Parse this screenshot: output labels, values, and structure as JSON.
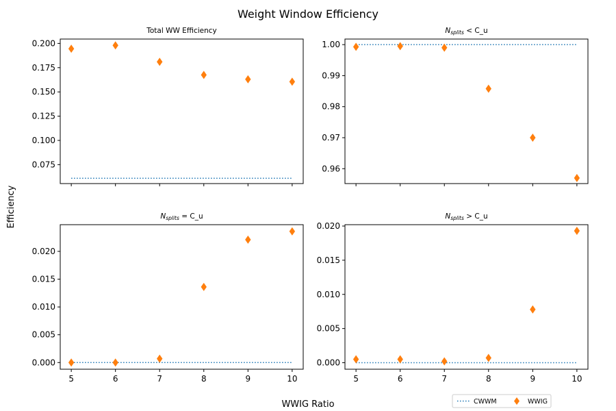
{
  "figure": {
    "title": "Weight Window Efficiency",
    "xlabel": "WWIG Ratio",
    "ylabel": "Efficiency"
  },
  "legend": {
    "placement": "bottom-right",
    "entries": [
      {
        "name": "CWWM",
        "style": "dotted-line",
        "color": "#1f77b4"
      },
      {
        "name": "WWIG",
        "style": "diamond-marker",
        "color": "#ff7f0e"
      }
    ]
  },
  "chart_data": [
    {
      "type": "scatter",
      "title_main": "Total WW Efficiency",
      "title_sub": "",
      "title_rest": "",
      "x": [
        5,
        6,
        7,
        8,
        9,
        10
      ],
      "xlim": [
        4.75,
        10.25
      ],
      "xticks": [
        "5",
        "6",
        "7",
        "8",
        "9",
        "10"
      ],
      "show_xtick_labels": false,
      "ylim": [
        0.0555,
        0.2045
      ],
      "yticks": [
        "0.075",
        "0.100",
        "0.125",
        "0.150",
        "0.175",
        "0.200"
      ],
      "series": [
        {
          "name": "CWWM",
          "values": [
            0.061,
            0.061,
            0.061,
            0.061,
            0.061,
            0.061
          ]
        },
        {
          "name": "WWIG",
          "values": [
            0.1945,
            0.198,
            0.181,
            0.1675,
            0.163,
            0.1605
          ]
        }
      ]
    },
    {
      "type": "scatter",
      "title_main": "N",
      "title_sub": "splits",
      "title_rest": " < C_u",
      "x": [
        5,
        6,
        7,
        8,
        9,
        10
      ],
      "xlim": [
        4.75,
        10.25
      ],
      "xticks": [
        "5",
        "6",
        "7",
        "8",
        "9",
        "10"
      ],
      "show_xtick_labels": false,
      "ylim": [
        0.9552,
        1.0018
      ],
      "yticks": [
        "0.96",
        "0.97",
        "0.98",
        "0.99",
        "1.00"
      ],
      "series": [
        {
          "name": "CWWM",
          "values": [
            1.0,
            1.0,
            1.0,
            1.0,
            1.0,
            1.0
          ]
        },
        {
          "name": "WWIG",
          "values": [
            0.9993,
            0.9995,
            0.999,
            0.9858,
            0.97,
            0.957
          ]
        }
      ]
    },
    {
      "type": "scatter",
      "title_main": "N",
      "title_sub": "splits",
      "title_rest": " = C_u",
      "x": [
        5,
        6,
        7,
        8,
        9,
        10
      ],
      "xlim": [
        4.75,
        10.25
      ],
      "xticks": [
        "5",
        "6",
        "7",
        "8",
        "9",
        "10"
      ],
      "show_xtick_labels": true,
      "ylim": [
        -0.0012,
        0.0248
      ],
      "yticks": [
        "0.000",
        "0.005",
        "0.010",
        "0.015",
        "0.020"
      ],
      "series": [
        {
          "name": "CWWM",
          "values": [
            0.0,
            0.0,
            0.0,
            0.0,
            0.0,
            0.0
          ]
        },
        {
          "name": "WWIG",
          "values": [
            0.0,
            0.0,
            0.0007,
            0.0136,
            0.0221,
            0.0236
          ]
        }
      ]
    },
    {
      "type": "scatter",
      "title_main": "N",
      "title_sub": "splits",
      "title_rest": " > C_u",
      "x": [
        5,
        6,
        7,
        8,
        9,
        10
      ],
      "xlim": [
        4.75,
        10.25
      ],
      "xticks": [
        "5",
        "6",
        "7",
        "8",
        "9",
        "10"
      ],
      "show_xtick_labels": true,
      "ylim": [
        -0.00095,
        0.0202
      ],
      "yticks": [
        "0.000",
        "0.005",
        "0.010",
        "0.015",
        "0.020"
      ],
      "series": [
        {
          "name": "CWWM",
          "values": [
            0.0,
            0.0,
            0.0,
            0.0,
            0.0,
            0.0
          ]
        },
        {
          "name": "WWIG",
          "values": [
            0.0005,
            0.0005,
            0.0002,
            0.0007,
            0.0078,
            0.0193
          ]
        }
      ]
    }
  ]
}
